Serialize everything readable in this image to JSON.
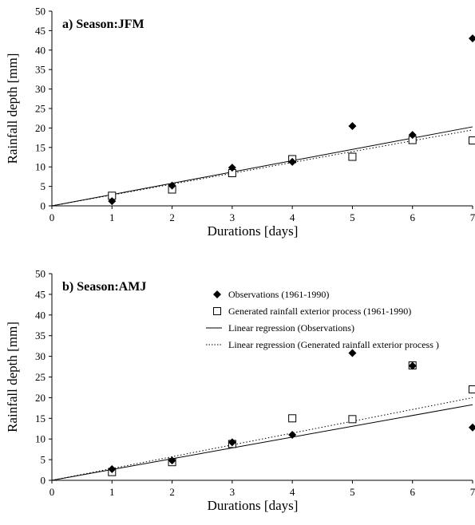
{
  "chart_data": [
    {
      "type": "scatter",
      "title": "a) Season:JFM",
      "xlabel": "Durations [days]",
      "ylabel": "Rainfall depth [mm]",
      "xlim": [
        0,
        7
      ],
      "ylim": [
        0,
        50
      ],
      "xticks": [
        "0",
        "1",
        "2",
        "3",
        "4",
        "5",
        "6",
        "7"
      ],
      "yticks": [
        "0",
        "5",
        "10",
        "15",
        "20",
        "25",
        "30",
        "35",
        "40",
        "45",
        "50"
      ],
      "grid": false,
      "legend": "none",
      "x": [
        1,
        2,
        3,
        4,
        5,
        6,
        7
      ],
      "series": [
        {
          "name": "Observations (1961-1990)",
          "marker": "diamond-filled",
          "values": [
            1.2,
            5.2,
            9.8,
            11.3,
            20.5,
            18.2,
            43.0
          ]
        },
        {
          "name": "Generated rainfall exterior process (1961-1990)",
          "marker": "square-open",
          "values": [
            2.6,
            4.2,
            8.4,
            12.0,
            12.6,
            16.9,
            16.8
          ]
        },
        {
          "name": "Linear regression (Observations)",
          "style": "solid",
          "line": [
            [
              0,
              0
            ],
            [
              7,
              20.3
            ]
          ]
        },
        {
          "name": "Linear regression (Generated rainfall exterior process )",
          "style": "dotted",
          "line": [
            [
              0,
              0
            ],
            [
              7,
              19.5
            ]
          ]
        }
      ]
    },
    {
      "type": "scatter",
      "title": "b) Season:AMJ",
      "xlabel": "Durations [days]",
      "ylabel": "Rainfall depth [mm]",
      "xlim": [
        0,
        7
      ],
      "ylim": [
        0,
        50
      ],
      "xticks": [
        "0",
        "1",
        "2",
        "3",
        "4",
        "5",
        "6",
        "7"
      ],
      "yticks": [
        "0",
        "5",
        "10",
        "15",
        "20",
        "25",
        "30",
        "35",
        "40",
        "45",
        "50"
      ],
      "grid": false,
      "legend": "top-right",
      "x": [
        1,
        2,
        3,
        4,
        5,
        6,
        7
      ],
      "series": [
        {
          "name": "Observations (1961-1990)",
          "marker": "diamond-filled",
          "values": [
            2.7,
            4.8,
            9.2,
            11.0,
            30.8,
            27.7,
            12.8
          ]
        },
        {
          "name": "Generated rainfall exterior process (1961-1990)",
          "marker": "square-open",
          "values": [
            2.0,
            4.4,
            8.8,
            15.0,
            14.8,
            27.8,
            22.0
          ]
        },
        {
          "name": "Linear regression (Observations)",
          "style": "solid",
          "line": [
            [
              0,
              0
            ],
            [
              7,
              18.3
            ]
          ]
        },
        {
          "name": "Linear regression (Generated rainfall exterior process )",
          "style": "dotted",
          "line": [
            [
              0,
              0
            ],
            [
              7,
              20.0
            ]
          ]
        }
      ]
    }
  ]
}
